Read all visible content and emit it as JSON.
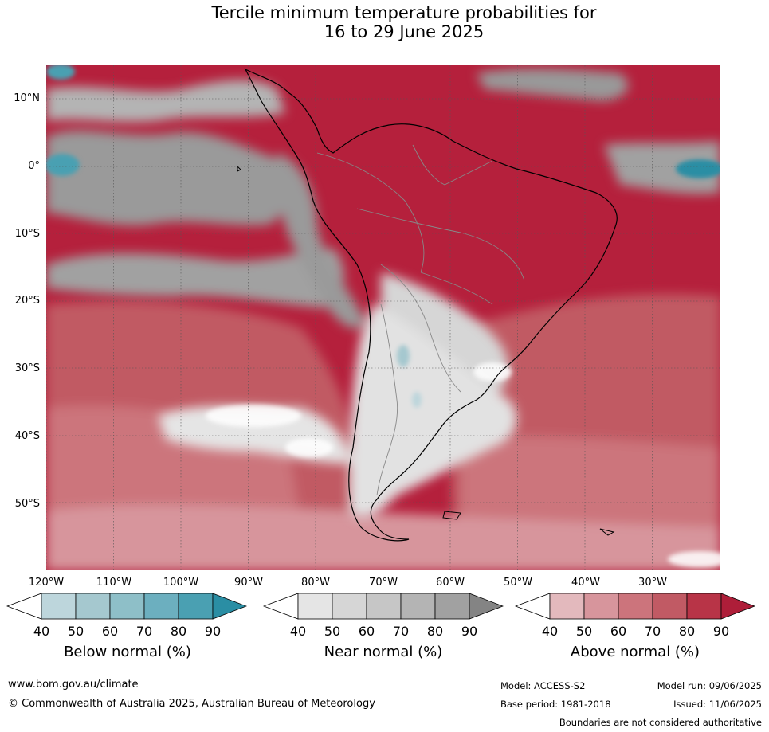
{
  "title": {
    "line1": "Tercile minimum temperature probabilities for",
    "line2": "16 to 29 June 2025"
  },
  "lat_labels": [
    "10°N",
    "0°",
    "10°S",
    "20°S",
    "30°S",
    "40°S",
    "50°S"
  ],
  "lon_labels": [
    "120°W",
    "110°W",
    "100°W",
    "90°W",
    "80°W",
    "70°W",
    "60°W",
    "50°W",
    "40°W",
    "30°W"
  ],
  "colorbars": {
    "below": {
      "label": "Below normal (%)",
      "ticks": [
        "40",
        "50",
        "60",
        "70",
        "80",
        "90"
      ],
      "colors": [
        "#ffffff",
        "#bdd6dc",
        "#a5c8cf",
        "#8ebfc8",
        "#6cafbf",
        "#4aa0b2",
        "#2a8ea4"
      ]
    },
    "near": {
      "label": "Near normal (%)",
      "ticks": [
        "40",
        "50",
        "60",
        "70",
        "80",
        "90"
      ],
      "colors": [
        "#ffffff",
        "#e5e5e5",
        "#d6d6d6",
        "#c6c6c6",
        "#b4b4b4",
        "#a1a1a1",
        "#848484"
      ]
    },
    "above": {
      "label": "Above normal (%)",
      "ticks": [
        "40",
        "50",
        "60",
        "70",
        "80",
        "90"
      ],
      "colors": [
        "#ffffff",
        "#e3b9bd",
        "#d7959c",
        "#cc747c",
        "#c15a64",
        "#b83447",
        "#ae1e39"
      ]
    }
  },
  "footer": {
    "website": "www.bom.gov.au/climate",
    "copyright": "© Commonwealth of Australia 2025, Australian Bureau of Meteorology",
    "model": "Model: ACCESS-S2",
    "model_run": "Model run: 09/06/2025",
    "base_period": "Base period: 1981-2018",
    "issued": "Issued: 11/06/2025",
    "disclaimer": "Boundaries are not considered authoritative"
  }
}
